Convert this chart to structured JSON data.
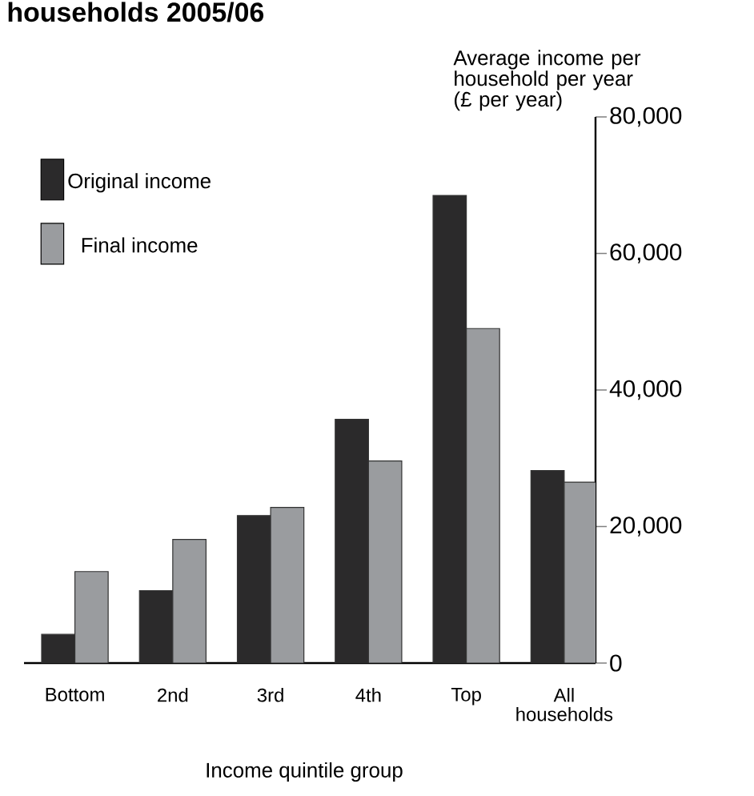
{
  "chart_data": {
    "type": "bar",
    "title": "households 2005/06",
    "ylabel": "Average income per household per year (£ per year)",
    "xlabel": "Income quintile group",
    "categories": [
      "Bottom",
      "2nd",
      "3rd",
      "4th",
      "Top",
      "All households"
    ],
    "series": [
      {
        "name": "Original income",
        "color": "#2b2a2b",
        "values": [
          4200,
          10600,
          21600,
          35700,
          68500,
          28200
        ]
      },
      {
        "name": "Final income",
        "color": "#9a9c9f",
        "values": [
          13400,
          18100,
          22800,
          29600,
          49000,
          26500
        ]
      }
    ],
    "ylim": [
      0,
      80000
    ],
    "yticks": [
      {
        "value": 0,
        "label": "0"
      },
      {
        "value": 20000,
        "label": "20,000"
      },
      {
        "value": 40000,
        "label": "40,000"
      },
      {
        "value": 60000,
        "label": "60,000"
      },
      {
        "value": 80000,
        "label": "80,000"
      }
    ],
    "grid": false,
    "legend": "top left"
  }
}
